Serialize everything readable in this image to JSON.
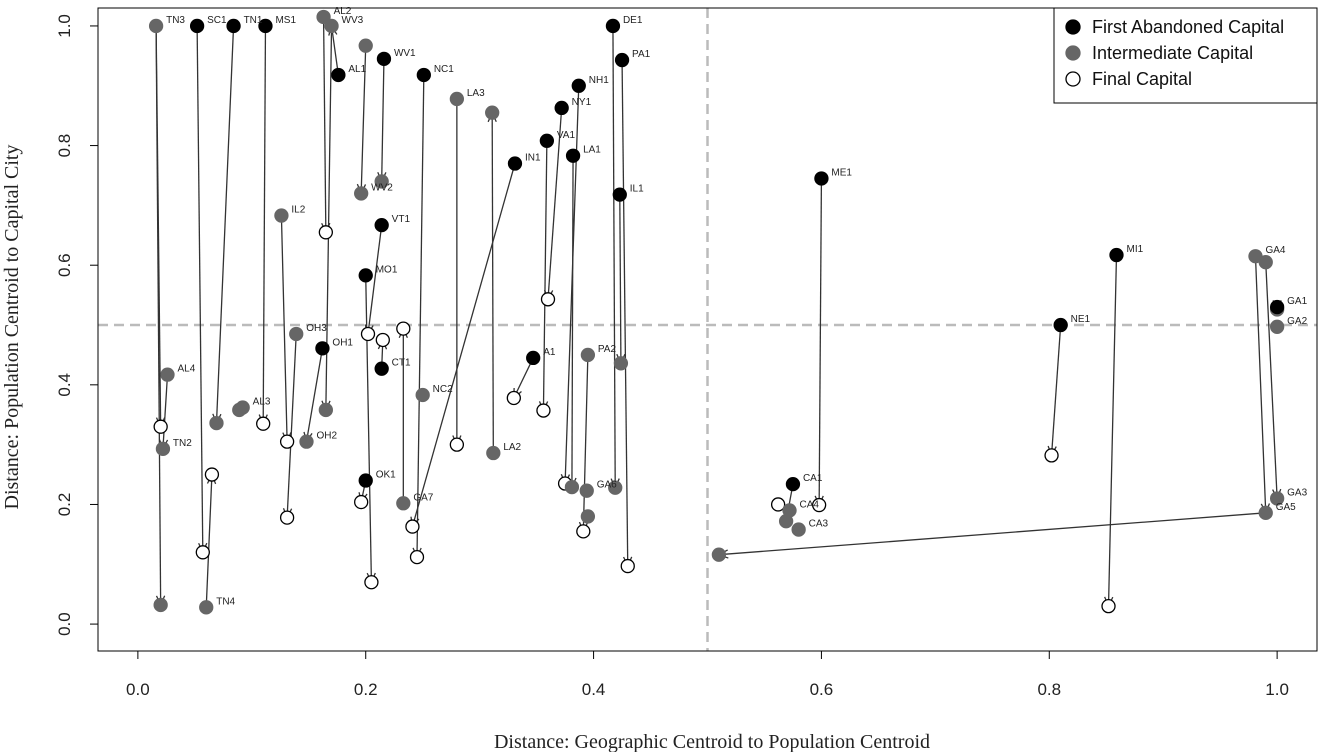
{
  "chart_data": {
    "type": "scatter",
    "title": "",
    "xlabel": "Distance: Geographic Centroid to Population Centroid",
    "ylabel": "Distance: Population Centroid to Capital City",
    "xlim": [
      -0.035,
      1.035
    ],
    "ylim": [
      -0.045,
      1.03
    ],
    "xticks": [
      0.0,
      0.2,
      0.4,
      0.6,
      0.8,
      1.0
    ],
    "xtick_labels": [
      "0.0",
      "0.2",
      "0.4",
      "0.6",
      "0.8",
      "1.0"
    ],
    "yticks": [
      0.0,
      0.2,
      0.4,
      0.6,
      0.8,
      1.0
    ],
    "ytick_labels": [
      "0.0",
      "0.2",
      "0.4",
      "0.6",
      "0.8",
      "1.0"
    ],
    "reference_lines": [
      {
        "orientation": "vertical",
        "value": 0.5,
        "style": "dashed",
        "color": "#bbbbbb"
      },
      {
        "orientation": "horizontal",
        "value": 0.5,
        "style": "dashed",
        "color": "#bbbbbb"
      }
    ],
    "legend_position": "top-right",
    "colors": {
      "first": "#000000",
      "intermediate": "#666666",
      "final_fill": "#ffffff",
      "final_stroke": "#000000",
      "arrow": "#333333",
      "ref_line": "#bbbbbb"
    },
    "legend": [
      {
        "key": "first",
        "label": "First Abandoned Capital"
      },
      {
        "key": "intermediate",
        "label": "Intermediate Capital"
      },
      {
        "key": "final",
        "label": "Final Capital"
      }
    ],
    "points": [
      {
        "x": 0.052,
        "y": 1.0,
        "type": "first",
        "label": "SC1"
      },
      {
        "x": 0.084,
        "y": 1.0,
        "type": "first",
        "label": "TN1"
      },
      {
        "x": 0.112,
        "y": 1.0,
        "type": "first",
        "label": "MS1"
      },
      {
        "x": 0.417,
        "y": 1.0,
        "type": "first",
        "label": "DE1"
      },
      {
        "x": 0.425,
        "y": 0.943,
        "type": "first",
        "label": "PA1"
      },
      {
        "x": 0.216,
        "y": 0.945,
        "type": "first",
        "label": "WV1"
      },
      {
        "x": 0.176,
        "y": 0.918,
        "type": "first",
        "label": "AL1"
      },
      {
        "x": 0.251,
        "y": 0.918,
        "type": "first",
        "label": "NC1"
      },
      {
        "x": 0.387,
        "y": 0.9,
        "type": "first",
        "label": "NH1"
      },
      {
        "x": 0.372,
        "y": 0.863,
        "type": "first",
        "label": "NY1"
      },
      {
        "x": 0.359,
        "y": 0.808,
        "type": "first",
        "label": "VA1"
      },
      {
        "x": 0.382,
        "y": 0.783,
        "type": "first",
        "label": "LA1"
      },
      {
        "x": 0.331,
        "y": 0.77,
        "type": "first",
        "label": "IN1"
      },
      {
        "x": 0.423,
        "y": 0.718,
        "type": "first",
        "label": "IL1"
      },
      {
        "x": 0.6,
        "y": 0.745,
        "type": "first",
        "label": "ME1"
      },
      {
        "x": 0.214,
        "y": 0.667,
        "type": "first",
        "label": "VT1"
      },
      {
        "x": 0.2,
        "y": 0.583,
        "type": "first",
        "label": "MO1"
      },
      {
        "x": 0.162,
        "y": 0.461,
        "type": "first",
        "label": "OH1"
      },
      {
        "x": 0.214,
        "y": 0.427,
        "type": "first",
        "label": "CT1"
      },
      {
        "x": 0.347,
        "y": 0.445,
        "type": "first",
        "label": "A1"
      },
      {
        "x": 0.2,
        "y": 0.24,
        "type": "first",
        "label": "OK1"
      },
      {
        "x": 0.575,
        "y": 0.234,
        "type": "first",
        "label": "CA1"
      },
      {
        "x": 0.859,
        "y": 0.617,
        "type": "first",
        "label": "MI1"
      },
      {
        "x": 0.81,
        "y": 0.5,
        "type": "first",
        "label": "NE1"
      },
      {
        "x": 1.0,
        "y": 0.53,
        "type": "first",
        "label": "GA1"
      },
      {
        "x": 0.016,
        "y": 1.0,
        "type": "intermediate",
        "label": "TN3"
      },
      {
        "x": 0.163,
        "y": 1.015,
        "type": "intermediate",
        "label": "AL2"
      },
      {
        "x": 0.17,
        "y": 1.0,
        "type": "intermediate",
        "label": "WV3"
      },
      {
        "x": 0.2,
        "y": 0.967,
        "type": "intermediate",
        "label": ""
      },
      {
        "x": 0.28,
        "y": 0.878,
        "type": "intermediate",
        "label": "LA3"
      },
      {
        "x": 0.311,
        "y": 0.855,
        "type": "intermediate",
        "label": ""
      },
      {
        "x": 0.214,
        "y": 0.74,
        "type": "intermediate",
        "label": ""
      },
      {
        "x": 0.196,
        "y": 0.72,
        "type": "intermediate",
        "label": "WV2"
      },
      {
        "x": 0.126,
        "y": 0.683,
        "type": "intermediate",
        "label": "IL2"
      },
      {
        "x": 0.139,
        "y": 0.485,
        "type": "intermediate",
        "label": "OH3"
      },
      {
        "x": 0.026,
        "y": 0.417,
        "type": "intermediate",
        "label": "AL4"
      },
      {
        "x": 0.092,
        "y": 0.362,
        "type": "intermediate",
        "label": "AL3"
      },
      {
        "x": 0.089,
        "y": 0.358,
        "type": "intermediate",
        "label": ""
      },
      {
        "x": 0.069,
        "y": 0.336,
        "type": "intermediate",
        "label": ""
      },
      {
        "x": 0.165,
        "y": 0.358,
        "type": "intermediate",
        "label": ""
      },
      {
        "x": 0.148,
        "y": 0.305,
        "type": "intermediate",
        "label": "OH2"
      },
      {
        "x": 0.022,
        "y": 0.293,
        "type": "intermediate",
        "label": "TN2"
      },
      {
        "x": 0.25,
        "y": 0.383,
        "type": "intermediate",
        "label": "NC2"
      },
      {
        "x": 0.312,
        "y": 0.286,
        "type": "intermediate",
        "label": "LA2"
      },
      {
        "x": 0.395,
        "y": 0.45,
        "type": "intermediate",
        "label": "PA2"
      },
      {
        "x": 0.424,
        "y": 0.436,
        "type": "intermediate",
        "label": ""
      },
      {
        "x": 0.233,
        "y": 0.202,
        "type": "intermediate",
        "label": "GA7"
      },
      {
        "x": 0.381,
        "y": 0.229,
        "type": "intermediate",
        "label": ""
      },
      {
        "x": 0.394,
        "y": 0.223,
        "type": "intermediate",
        "label": "GA6"
      },
      {
        "x": 0.419,
        "y": 0.228,
        "type": "intermediate",
        "label": ""
      },
      {
        "x": 0.395,
        "y": 0.18,
        "type": "intermediate",
        "label": ""
      },
      {
        "x": 0.02,
        "y": 0.032,
        "type": "intermediate",
        "label": ""
      },
      {
        "x": 0.06,
        "y": 0.028,
        "type": "intermediate",
        "label": "TN4"
      },
      {
        "x": 0.572,
        "y": 0.19,
        "type": "intermediate",
        "label": "CA4"
      },
      {
        "x": 0.569,
        "y": 0.172,
        "type": "intermediate",
        "label": ""
      },
      {
        "x": 0.58,
        "y": 0.158,
        "type": "intermediate",
        "label": "CA3"
      },
      {
        "x": 0.51,
        "y": 0.116,
        "type": "intermediate",
        "label": ""
      },
      {
        "x": 0.981,
        "y": 0.615,
        "type": "intermediate",
        "label": "GA4"
      },
      {
        "x": 0.99,
        "y": 0.605,
        "type": "intermediate",
        "label": ""
      },
      {
        "x": 1.0,
        "y": 0.526,
        "type": "intermediate",
        "label": ""
      },
      {
        "x": 1.0,
        "y": 0.497,
        "type": "intermediate",
        "label": "GA2"
      },
      {
        "x": 1.0,
        "y": 0.21,
        "type": "intermediate",
        "label": "GA3"
      },
      {
        "x": 0.99,
        "y": 0.186,
        "type": "intermediate",
        "label": "GA5"
      },
      {
        "x": 0.165,
        "y": 0.655,
        "type": "final",
        "label": ""
      },
      {
        "x": 0.36,
        "y": 0.543,
        "type": "final",
        "label": ""
      },
      {
        "x": 0.233,
        "y": 0.494,
        "type": "final",
        "label": ""
      },
      {
        "x": 0.202,
        "y": 0.485,
        "type": "final",
        "label": ""
      },
      {
        "x": 0.215,
        "y": 0.475,
        "type": "final",
        "label": ""
      },
      {
        "x": 0.02,
        "y": 0.33,
        "type": "final",
        "label": ""
      },
      {
        "x": 0.11,
        "y": 0.335,
        "type": "final",
        "label": ""
      },
      {
        "x": 0.131,
        "y": 0.305,
        "type": "final",
        "label": ""
      },
      {
        "x": 0.28,
        "y": 0.3,
        "type": "final",
        "label": ""
      },
      {
        "x": 0.131,
        "y": 0.178,
        "type": "final",
        "label": ""
      },
      {
        "x": 0.065,
        "y": 0.25,
        "type": "final",
        "label": ""
      },
      {
        "x": 0.057,
        "y": 0.12,
        "type": "final",
        "label": ""
      },
      {
        "x": 0.196,
        "y": 0.204,
        "type": "final",
        "label": ""
      },
      {
        "x": 0.205,
        "y": 0.07,
        "type": "final",
        "label": ""
      },
      {
        "x": 0.241,
        "y": 0.163,
        "type": "final",
        "label": ""
      },
      {
        "x": 0.245,
        "y": 0.112,
        "type": "final",
        "label": ""
      },
      {
        "x": 0.33,
        "y": 0.378,
        "type": "final",
        "label": ""
      },
      {
        "x": 0.356,
        "y": 0.357,
        "type": "final",
        "label": ""
      },
      {
        "x": 0.375,
        "y": 0.235,
        "type": "final",
        "label": ""
      },
      {
        "x": 0.391,
        "y": 0.155,
        "type": "final",
        "label": ""
      },
      {
        "x": 0.43,
        "y": 0.097,
        "type": "final",
        "label": ""
      },
      {
        "x": 0.562,
        "y": 0.2,
        "type": "final",
        "label": ""
      },
      {
        "x": 0.598,
        "y": 0.199,
        "type": "final",
        "label": ""
      },
      {
        "x": 0.802,
        "y": 0.282,
        "type": "final",
        "label": ""
      },
      {
        "x": 0.852,
        "y": 0.03,
        "type": "final",
        "label": ""
      }
    ],
    "arrows": [
      {
        "from": [
          0.016,
          1.0
        ],
        "to": [
          0.02,
          0.032
        ]
      },
      {
        "from": [
          0.016,
          1.0
        ],
        "to": [
          0.02,
          0.33
        ]
      },
      {
        "from": [
          0.052,
          1.0
        ],
        "to": [
          0.057,
          0.12
        ]
      },
      {
        "from": [
          0.084,
          1.0
        ],
        "to": [
          0.069,
          0.336
        ]
      },
      {
        "from": [
          0.112,
          1.0
        ],
        "to": [
          0.11,
          0.335
        ]
      },
      {
        "from": [
          0.163,
          1.015
        ],
        "to": [
          0.165,
          0.655
        ]
      },
      {
        "from": [
          0.17,
          1.0
        ],
        "to": [
          0.165,
          0.358
        ]
      },
      {
        "from": [
          0.176,
          0.918
        ],
        "to": [
          0.17,
          1.0
        ]
      },
      {
        "from": [
          0.2,
          0.967
        ],
        "to": [
          0.196,
          0.72
        ]
      },
      {
        "from": [
          0.216,
          0.945
        ],
        "to": [
          0.214,
          0.74
        ]
      },
      {
        "from": [
          0.251,
          0.918
        ],
        "to": [
          0.245,
          0.112
        ]
      },
      {
        "from": [
          0.28,
          0.878
        ],
        "to": [
          0.28,
          0.3
        ]
      },
      {
        "from": [
          0.312,
          0.286
        ],
        "to": [
          0.311,
          0.855
        ]
      },
      {
        "from": [
          0.331,
          0.77
        ],
        "to": [
          0.241,
          0.163
        ]
      },
      {
        "from": [
          0.359,
          0.808
        ],
        "to": [
          0.356,
          0.357
        ]
      },
      {
        "from": [
          0.372,
          0.863
        ],
        "to": [
          0.36,
          0.543
        ]
      },
      {
        "from": [
          0.387,
          0.9
        ],
        "to": [
          0.375,
          0.235
        ]
      },
      {
        "from": [
          0.382,
          0.783
        ],
        "to": [
          0.381,
          0.229
        ]
      },
      {
        "from": [
          0.417,
          1.0
        ],
        "to": [
          0.419,
          0.228
        ]
      },
      {
        "from": [
          0.425,
          0.943
        ],
        "to": [
          0.43,
          0.097
        ]
      },
      {
        "from": [
          0.423,
          0.718
        ],
        "to": [
          0.424,
          0.436
        ]
      },
      {
        "from": [
          0.395,
          0.45
        ],
        "to": [
          0.391,
          0.155
        ]
      },
      {
        "from": [
          0.6,
          0.745
        ],
        "to": [
          0.598,
          0.199
        ]
      },
      {
        "from": [
          0.2,
          0.583
        ],
        "to": [
          0.205,
          0.07
        ]
      },
      {
        "from": [
          0.214,
          0.667
        ],
        "to": [
          0.202,
          0.485
        ]
      },
      {
        "from": [
          0.126,
          0.683
        ],
        "to": [
          0.131,
          0.305
        ]
      },
      {
        "from": [
          0.139,
          0.485
        ],
        "to": [
          0.131,
          0.178
        ]
      },
      {
        "from": [
          0.162,
          0.461
        ],
        "to": [
          0.148,
          0.305
        ]
      },
      {
        "from": [
          0.214,
          0.427
        ],
        "to": [
          0.215,
          0.475
        ]
      },
      {
        "from": [
          0.233,
          0.202
        ],
        "to": [
          0.233,
          0.494
        ]
      },
      {
        "from": [
          0.2,
          0.24
        ],
        "to": [
          0.196,
          0.204
        ]
      },
      {
        "from": [
          0.347,
          0.445
        ],
        "to": [
          0.33,
          0.378
        ]
      },
      {
        "from": [
          0.06,
          0.028
        ],
        "to": [
          0.065,
          0.25
        ]
      },
      {
        "from": [
          0.026,
          0.417
        ],
        "to": [
          0.022,
          0.293
        ]
      },
      {
        "from": [
          0.859,
          0.617
        ],
        "to": [
          0.852,
          0.03
        ]
      },
      {
        "from": [
          0.81,
          0.5
        ],
        "to": [
          0.802,
          0.282
        ]
      },
      {
        "from": [
          0.981,
          0.615
        ],
        "to": [
          0.99,
          0.186
        ]
      },
      {
        "from": [
          0.99,
          0.605
        ],
        "to": [
          1.0,
          0.21
        ]
      },
      {
        "from": [
          1.0,
          0.53
        ],
        "to": [
          1.0,
          0.526
        ]
      },
      {
        "from": [
          0.99,
          0.186
        ],
        "to": [
          0.51,
          0.116
        ]
      },
      {
        "from": [
          0.575,
          0.234
        ],
        "to": [
          0.569,
          0.172
        ]
      }
    ]
  }
}
